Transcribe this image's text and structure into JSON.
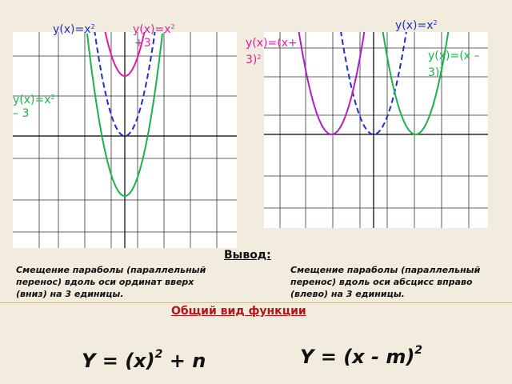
{
  "labels": {
    "left_base": "y(x)=x",
    "left_up": "y(x)=x",
    "left_up_suffix": "+3",
    "left_down": "y(x)=x",
    "left_down_suffix": "– 3",
    "right_base": "y(x)=x",
    "right_left": "y(x)=(x+",
    "right_left_suffix": "3)",
    "right_right": "y(x)=(x –",
    "right_right_suffix": "3)",
    "exp": "2"
  },
  "conclusion": {
    "heading": "Вывод:",
    "left_note": "Смещение параболы (параллельный перенос) вдоль оси ординат вверх (вниз) на 3 единицы.",
    "right_note": "Смещение параболы (параллельный перенос) вдоль оси абсцисс вправо (влево) на 3 единицы.",
    "general_title": "Общий вид функции",
    "formula_left": "Y = (x)",
    "formula_left_suffix": " + n",
    "formula_right": "Y = (x - m)",
    "exp": "2"
  },
  "colors": {
    "blue": "#1d2fd0",
    "pink": "#e01ca6",
    "green": "#19b34a",
    "purple": "#b01ecc",
    "red": "#b8141e"
  }
}
